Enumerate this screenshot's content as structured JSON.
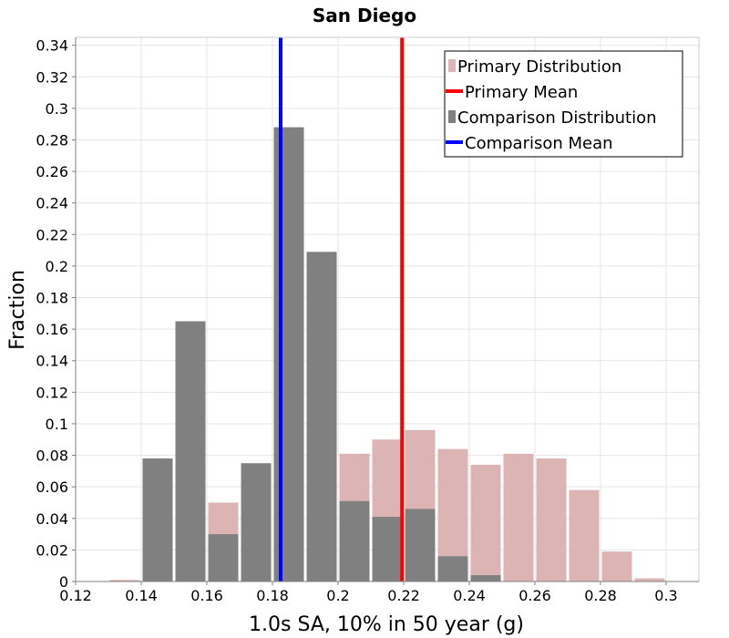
{
  "chart_data": {
    "type": "bar",
    "title": "San Diego",
    "xlabel": "1.0s SA, 10% in 50 year (g)",
    "ylabel": "Fraction",
    "xlim": [
      0.12,
      0.31
    ],
    "ylim": [
      0,
      0.345
    ],
    "bin_width": 0.01,
    "x_ticks": [
      {
        "value": 0.12,
        "label": "0.12"
      },
      {
        "value": 0.14,
        "label": "0.14"
      },
      {
        "value": 0.16,
        "label": "0.16"
      },
      {
        "value": 0.18,
        "label": "0.18"
      },
      {
        "value": 0.2,
        "label": "0.2"
      },
      {
        "value": 0.22,
        "label": "0.22"
      },
      {
        "value": 0.24,
        "label": "0.24"
      },
      {
        "value": 0.26,
        "label": "0.26"
      },
      {
        "value": 0.28,
        "label": "0.28"
      },
      {
        "value": 0.3,
        "label": "0.3"
      }
    ],
    "y_ticks": [
      {
        "value": 0,
        "label": "0"
      },
      {
        "value": 0.02,
        "label": "0.02"
      },
      {
        "value": 0.04,
        "label": "0.04"
      },
      {
        "value": 0.06,
        "label": "0.06"
      },
      {
        "value": 0.08,
        "label": "0.08"
      },
      {
        "value": 0.1,
        "label": "0.1"
      },
      {
        "value": 0.12,
        "label": "0.12"
      },
      {
        "value": 0.14,
        "label": "0.14"
      },
      {
        "value": 0.16,
        "label": "0.16"
      },
      {
        "value": 0.18,
        "label": "0.18"
      },
      {
        "value": 0.2,
        "label": "0.2"
      },
      {
        "value": 0.22,
        "label": "0.22"
      },
      {
        "value": 0.24,
        "label": "0.24"
      },
      {
        "value": 0.26,
        "label": "0.26"
      },
      {
        "value": 0.28,
        "label": "0.28"
      },
      {
        "value": 0.3,
        "label": "0.3"
      },
      {
        "value": 0.32,
        "label": "0.32"
      },
      {
        "value": 0.34,
        "label": "0.34"
      }
    ],
    "grid": true,
    "legend_position": "top-right",
    "series": [
      {
        "name": "Primary Distribution",
        "kind": "histogram",
        "color": "#ddb4b4",
        "x": [
          0.135,
          0.145,
          0.155,
          0.165,
          0.175,
          0.185,
          0.195,
          0.205,
          0.215,
          0.225,
          0.235,
          0.245,
          0.255,
          0.265,
          0.275,
          0.285,
          0.295
        ],
        "values": [
          0.001,
          0.0,
          0.0,
          0.05,
          0.0,
          0.0,
          0.0,
          0.081,
          0.09,
          0.096,
          0.084,
          0.074,
          0.081,
          0.078,
          0.058,
          0.019,
          0.002
        ]
      },
      {
        "name": "Comparison Distribution",
        "kind": "histogram",
        "color": "#808080",
        "x": [
          0.145,
          0.155,
          0.165,
          0.175,
          0.185,
          0.195,
          0.205,
          0.215,
          0.225,
          0.235,
          0.245
        ],
        "values": [
          0.078,
          0.165,
          0.03,
          0.075,
          0.288,
          0.209,
          0.051,
          0.041,
          0.046,
          0.016,
          0.004
        ]
      }
    ],
    "mean_lines": [
      {
        "name": "Primary Mean",
        "x": 0.2195,
        "color": "#ff0000"
      },
      {
        "name": "Comparison Mean",
        "x": 0.1825,
        "color": "#0000ff"
      }
    ],
    "legend": [
      {
        "label": "Primary Distribution",
        "kind": "box",
        "color": "#ddb4b4"
      },
      {
        "label": "Primary Mean",
        "kind": "line",
        "color": "#ff0000"
      },
      {
        "label": "Comparison Distribution",
        "kind": "box",
        "color": "#808080"
      },
      {
        "label": "Comparison Mean",
        "kind": "line",
        "color": "#0000ff"
      }
    ]
  }
}
